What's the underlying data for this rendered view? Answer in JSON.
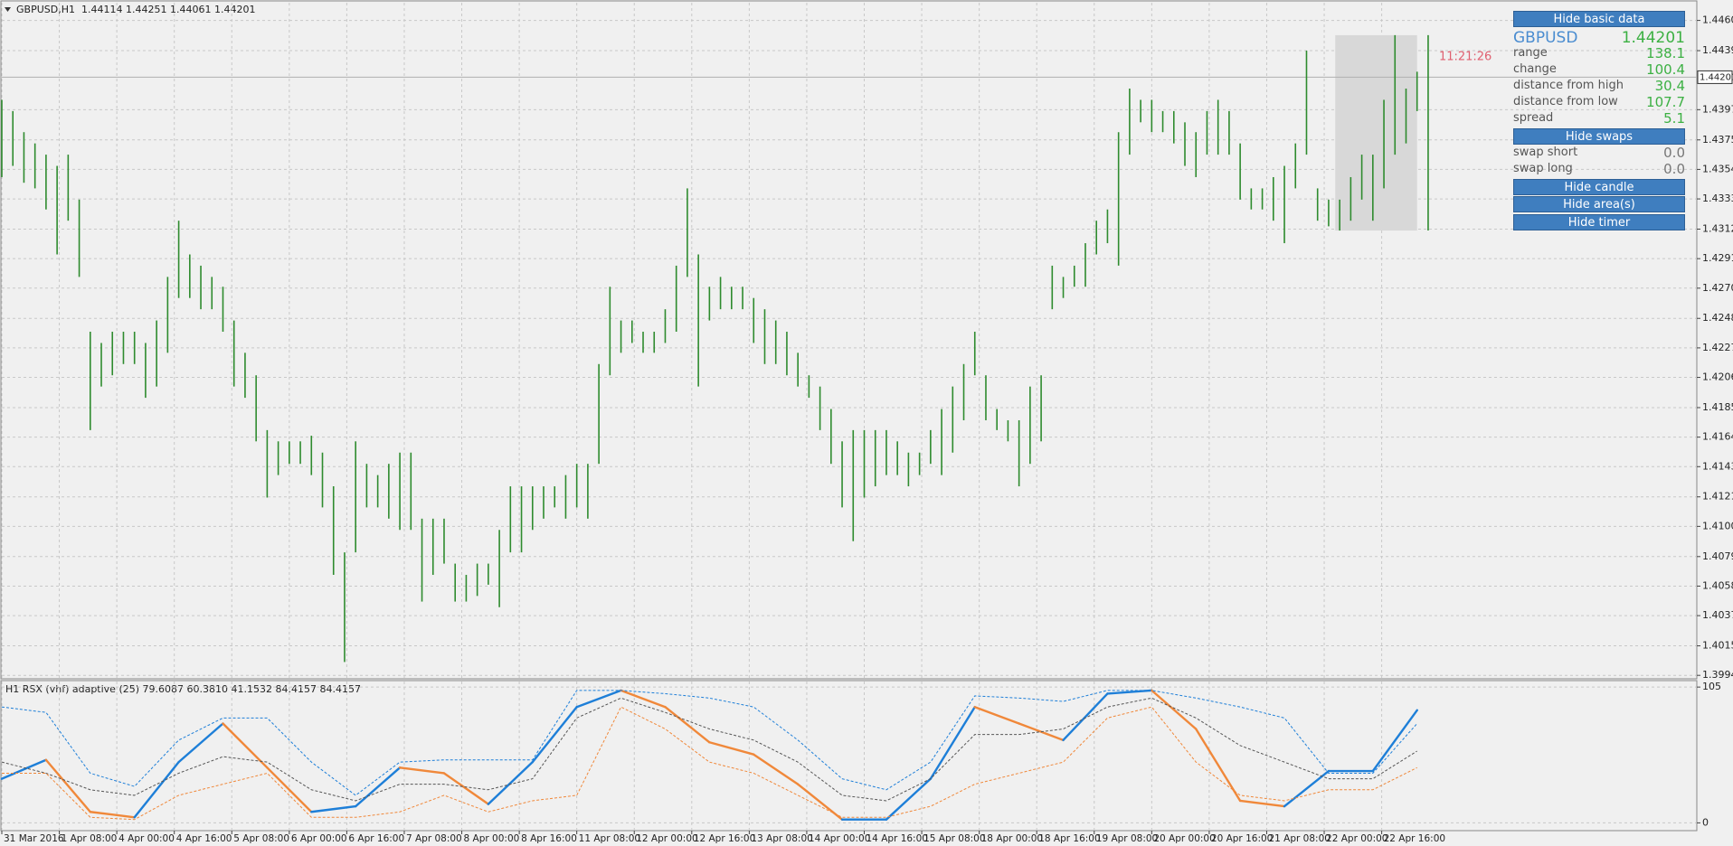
{
  "header": {
    "symbol": "GBPUSD,H1",
    "quote": "1.44114 1.44251 1.44061 1.44201"
  },
  "chart_data": [
    {
      "type": "ohlc",
      "color": "#2e8b2e",
      "grid": true,
      "xlim": [
        0,
        153.3
      ],
      "ylim": [
        1.39927,
        1.44731
      ],
      "xticks": [
        {
          "value": 0,
          "label": "31 Mar 2016"
        },
        {
          "value": 5.2,
          "label": "1 Apr 08:00"
        },
        {
          "value": 10.4,
          "label": "4 Apr 00:00"
        },
        {
          "value": 15.6,
          "label": "4 Apr 16:00"
        },
        {
          "value": 20.8,
          "label": "5 Apr 08:00"
        },
        {
          "value": 26,
          "label": "6 Apr 00:00"
        },
        {
          "value": 31.2,
          "label": "6 Apr 16:00"
        },
        {
          "value": 36.4,
          "label": "7 Apr 08:00"
        },
        {
          "value": 41.6,
          "label": "8 Apr 00:00"
        },
        {
          "value": 46.8,
          "label": "8 Apr 16:00"
        },
        {
          "value": 52,
          "label": "11 Apr 08:00"
        },
        {
          "value": 57.2,
          "label": "12 Apr 00:00"
        },
        {
          "value": 62.4,
          "label": "12 Apr 16:00"
        },
        {
          "value": 67.6,
          "label": "13 Apr 08:00"
        },
        {
          "value": 72.8,
          "label": "14 Apr 00:00"
        },
        {
          "value": 78,
          "label": "14 Apr 16:00"
        },
        {
          "value": 83.2,
          "label": "15 Apr 08:00"
        },
        {
          "value": 88.4,
          "label": "18 Apr 00:00"
        },
        {
          "value": 93.6,
          "label": "18 Apr 16:00"
        },
        {
          "value": 98.8,
          "label": "19 Apr 08:00"
        },
        {
          "value": 104,
          "label": "20 Apr 00:00"
        },
        {
          "value": 109.2,
          "label": "20 Apr 16:00"
        },
        {
          "value": 114.4,
          "label": "21 Apr 08:00"
        },
        {
          "value": 119.6,
          "label": "22 Apr 00:00"
        },
        {
          "value": 124.8,
          "label": "22 Apr 16:00"
        }
      ],
      "yticks": [
        1.44605,
        {
          "value": 1.4439,
          "label": "1.44390"
        },
        {
          "value": 1.4397,
          "label": "1.43970"
        },
        1.43755,
        1.43545,
        1.43335,
        1.4312,
        {
          "value": 1.4291,
          "label": "1.42910"
        },
        {
          "value": 1.427,
          "label": "1.42700"
        },
        1.42485,
        1.42275,
        1.42065,
        {
          "value": 1.4185,
          "label": "1.41850"
        },
        {
          "value": 1.4164,
          "label": "1.41640"
        },
        {
          "value": 1.4143,
          "label": "1.41430"
        },
        1.41215,
        1.41005,
        {
          "value": 1.4079,
          "label": "1.40790"
        },
        {
          "value": 1.4058,
          "label": "1.40580"
        },
        {
          "value": 1.4037,
          "label": "1.40370"
        },
        1.40155,
        1.39945
      ],
      "current_price": 1.44201,
      "timer": "11:21:26",
      "highlight_box": {
        "x": [
          120.6,
          128
        ],
        "y": [
          1.4311,
          1.445
        ]
      },
      "high": [
        1.4404,
        1.4396,
        1.4381,
        1.4373,
        1.4365,
        1.4357,
        1.4365,
        1.4333,
        1.4239,
        1.4231,
        1.4239,
        1.4239,
        1.4239,
        1.4231,
        1.4247,
        1.4278,
        1.4318,
        1.4294,
        1.4286,
        1.4278,
        1.4271,
        1.4247,
        1.4224,
        1.4208,
        1.4169,
        1.4161,
        1.4161,
        1.4161,
        1.4165,
        1.4153,
        1.4129,
        1.4082,
        1.4161,
        1.4145,
        1.4137,
        1.4145,
        1.4153,
        1.4153,
        1.4106,
        1.4106,
        1.4106,
        1.4074,
        1.4066,
        1.4074,
        1.4074,
        1.4098,
        1.4129,
        1.4129,
        1.4129,
        1.4129,
        1.4129,
        1.4137,
        1.4145,
        1.4145,
        1.4216,
        1.4271,
        1.4247,
        1.4247,
        1.4239,
        1.4239,
        1.4255,
        1.4286,
        1.4341,
        1.4294,
        1.4271,
        1.4278,
        1.4271,
        1.4271,
        1.4263,
        1.4255,
        1.4247,
        1.4239,
        1.4224,
        1.4208,
        1.42,
        1.4184,
        1.4161,
        1.4169,
        1.4169,
        1.4169,
        1.4169,
        1.4161,
        1.4153,
        1.4153,
        1.4169,
        1.4184,
        1.42,
        1.4216,
        1.4239,
        1.4208,
        1.4184,
        1.4176,
        1.4176,
        1.42,
        1.4208,
        1.4286,
        1.4278,
        1.4286,
        1.4302,
        1.4318,
        1.4326,
        1.4381,
        1.4412,
        1.4404,
        1.4404,
        1.4396,
        1.4396,
        1.4388,
        1.4381,
        1.4396,
        1.4404,
        1.4396,
        1.4373,
        1.4341,
        1.4341,
        1.4349,
        1.4357,
        1.4373,
        1.4439,
        1.4341,
        1.4333,
        1.4333,
        1.4349,
        1.4365,
        1.4365,
        1.4404,
        1.445,
        1.4412,
        1.4424,
        1.445
      ],
      "low": [
        1.4349,
        1.4357,
        1.4345,
        1.4341,
        1.4326,
        1.4294,
        1.4318,
        1.4278,
        1.4169,
        1.42,
        1.4208,
        1.4216,
        1.4216,
        1.4192,
        1.42,
        1.4224,
        1.4263,
        1.4263,
        1.4255,
        1.4255,
        1.4239,
        1.42,
        1.4192,
        1.4161,
        1.4121,
        1.4137,
        1.4145,
        1.4145,
        1.4137,
        1.4114,
        1.4066,
        1.4004,
        1.4082,
        1.4114,
        1.4114,
        1.4106,
        1.4098,
        1.4098,
        1.4047,
        1.4066,
        1.4074,
        1.4047,
        1.4047,
        1.4051,
        1.4059,
        1.4043,
        1.4082,
        1.4082,
        1.4098,
        1.4106,
        1.4114,
        1.4106,
        1.4114,
        1.4106,
        1.4145,
        1.4208,
        1.4224,
        1.4231,
        1.4224,
        1.4224,
        1.4231,
        1.4239,
        1.4278,
        1.42,
        1.4247,
        1.4255,
        1.4255,
        1.4255,
        1.4231,
        1.4216,
        1.4216,
        1.4208,
        1.42,
        1.4192,
        1.4169,
        1.4145,
        1.4114,
        1.409,
        1.4121,
        1.4129,
        1.4137,
        1.4137,
        1.4129,
        1.4137,
        1.4145,
        1.4137,
        1.4153,
        1.4176,
        1.4208,
        1.4176,
        1.4169,
        1.4161,
        1.4129,
        1.4145,
        1.4161,
        1.4255,
        1.4263,
        1.4271,
        1.4271,
        1.4294,
        1.4302,
        1.4286,
        1.4365,
        1.4388,
        1.4381,
        1.4381,
        1.4373,
        1.4357,
        1.4349,
        1.4365,
        1.4365,
        1.4365,
        1.4333,
        1.4326,
        1.4326,
        1.4318,
        1.4302,
        1.4341,
        1.4365,
        1.4318,
        1.4314,
        1.4311,
        1.4318,
        1.4333,
        1.4318,
        1.4341,
        1.4365,
        1.4373,
        1.4396,
        1.4311
      ]
    },
    {
      "type": "line",
      "title": "H1 RSX (vhf) adaptive (25) 79.6087 60.3810 41.1532 84.4157 84.4157",
      "grid": true,
      "xlim": [
        0,
        153.3
      ],
      "ylim": [
        -6,
        109.3
      ],
      "yticks": [
        0,
        105
      ],
      "x": [
        0,
        4,
        8,
        12,
        16,
        20,
        24,
        28,
        32,
        36,
        40,
        44,
        48,
        52,
        56,
        60,
        64,
        68,
        72,
        76,
        80,
        84,
        88,
        92,
        96,
        100,
        104,
        108,
        112,
        116,
        120,
        124,
        128
      ],
      "series": [
        {
          "up_color": "#1e7fd8",
          "down_color": "#f0883a",
          "width": 2.4,
          "values": [
            34.1,
            48.7,
            8.5,
            4.3,
            47.0,
            76.8,
            42.7,
            8.5,
            12.8,
            42.7,
            38.4,
            14.5,
            47.0,
            89.6,
            102.4,
            89.6,
            62.3,
            52.9,
            29.9,
            2.6,
            2.6,
            34.1,
            89.6,
            76.8,
            64.0,
            99.9,
            102.4,
            72.6,
            17.1,
            12.8,
            40.1,
            40.1,
            87.1
          ]
        },
        {
          "color": "#1e7fd8",
          "dash": true,
          "width": 1,
          "values": [
            89.6,
            85.4,
            38.4,
            28.2,
            64.0,
            81.1,
            81.1,
            47.0,
            21.3,
            47.0,
            48.7,
            48.7,
            48.7,
            102.4,
            102.4,
            99.9,
            96.5,
            89.6,
            64.0,
            34.1,
            25.6,
            47.0,
            98.2,
            96.5,
            93.9,
            102.4,
            102.4,
            96.5,
            89.6,
            81.1,
            38.4,
            38.4,
            76.8
          ]
        },
        {
          "color": "#555555",
          "dash": true,
          "width": 1,
          "values": [
            47.0,
            38.4,
            25.6,
            21.3,
            38.4,
            51.2,
            47.0,
            25.6,
            17.1,
            29.9,
            29.9,
            25.6,
            34.1,
            81.1,
            96.5,
            85.4,
            72.6,
            64.0,
            47.0,
            21.3,
            17.1,
            34.1,
            68.3,
            68.3,
            72.6,
            89.6,
            96.5,
            81.1,
            59.8,
            47.0,
            34.1,
            34.1,
            55.5
          ]
        },
        {
          "color": "#f0883a",
          "dash": true,
          "width": 1,
          "values": [
            38.4,
            38.4,
            4.3,
            2.6,
            21.3,
            29.9,
            38.4,
            4.3,
            4.3,
            8.5,
            21.3,
            8.5,
            17.1,
            21.3,
            89.6,
            72.6,
            47.0,
            38.4,
            21.3,
            4.3,
            4.3,
            12.8,
            29.9,
            38.4,
            47.0,
            81.1,
            89.6,
            47.0,
            21.3,
            17.1,
            25.6,
            25.6,
            42.7
          ]
        }
      ]
    }
  ],
  "panel": {
    "buttons": [
      "Hide basic data",
      "Hide swaps",
      "Hide candle",
      "Hide area(s)",
      "Hide timer"
    ],
    "symbol": "GBPUSD",
    "price": "1.44201",
    "rows": [
      [
        "range",
        "138.1"
      ],
      [
        "change",
        "100.4"
      ],
      [
        "distance from high",
        "30.4"
      ],
      [
        "distance from low",
        "107.7"
      ],
      [
        "spread",
        "5.1"
      ]
    ],
    "swaps": [
      [
        "swap short",
        "0.0"
      ],
      [
        "swap long",
        "0.0"
      ]
    ]
  }
}
